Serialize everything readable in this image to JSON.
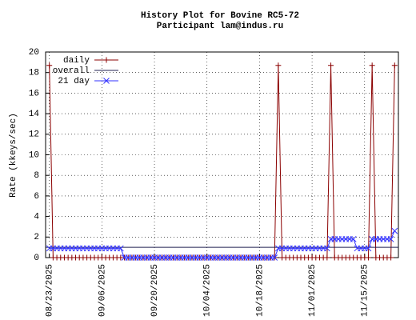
{
  "chart_data": {
    "type": "line",
    "title": "History Plot for Bovine RC5-72",
    "subtitle": "Participant lam@indus.ru",
    "y_label": "Rate (kkeys/sec)",
    "x": [
      "08/23/2025",
      "08/24/2025",
      "08/25/2025",
      "08/26/2025",
      "08/27/2025",
      "08/28/2025",
      "08/29/2025",
      "08/30/2025",
      "08/31/2025",
      "09/01/2025",
      "09/02/2025",
      "09/03/2025",
      "09/04/2025",
      "09/05/2025",
      "09/06/2025",
      "09/07/2025",
      "09/08/2025",
      "09/09/2025",
      "09/10/2025",
      "09/11/2025",
      "09/12/2025",
      "09/13/2025",
      "09/14/2025",
      "09/15/2025",
      "09/16/2025",
      "09/17/2025",
      "09/18/2025",
      "09/19/2025",
      "09/20/2025",
      "09/21/2025",
      "09/22/2025",
      "09/23/2025",
      "09/24/2025",
      "09/25/2025",
      "09/26/2025",
      "09/27/2025",
      "09/28/2025",
      "09/29/2025",
      "09/30/2025",
      "10/01/2025",
      "10/02/2025",
      "10/03/2025",
      "10/04/2025",
      "10/05/2025",
      "10/06/2025",
      "10/07/2025",
      "10/08/2025",
      "10/09/2025",
      "10/10/2025",
      "10/11/2025",
      "10/12/2025",
      "10/13/2025",
      "10/14/2025",
      "10/15/2025",
      "10/16/2025",
      "10/17/2025",
      "10/18/2025",
      "10/19/2025",
      "10/20/2025",
      "10/21/2025",
      "10/22/2025",
      "10/23/2025",
      "10/24/2025",
      "10/25/2025",
      "10/26/2025",
      "10/27/2025",
      "10/28/2025",
      "10/29/2025",
      "10/30/2025",
      "10/31/2025",
      "11/01/2025",
      "11/02/2025",
      "11/03/2025",
      "11/04/2025",
      "11/05/2025",
      "11/06/2025",
      "11/07/2025",
      "11/08/2025",
      "11/09/2025",
      "11/10/2025",
      "11/11/2025",
      "11/12/2025",
      "11/13/2025",
      "11/14/2025",
      "11/15/2025",
      "11/16/2025",
      "11/17/2025",
      "11/18/2025",
      "11/19/2025",
      "11/20/2025",
      "11/21/2025",
      "11/22/2025",
      "11/23/2025"
    ],
    "series": [
      {
        "name": "daily",
        "color": "#8b0000",
        "marker": "plus",
        "values": [
          18.7,
          0,
          0,
          0,
          0,
          0,
          0,
          0,
          0,
          0,
          0,
          0,
          0,
          0,
          0,
          0,
          0,
          0,
          0,
          0,
          0,
          0,
          0,
          0,
          0,
          0,
          0,
          0,
          0,
          0,
          0,
          0,
          0,
          0,
          0,
          0,
          0,
          0,
          0,
          0,
          0,
          0,
          0,
          0,
          0,
          0,
          0,
          0,
          0,
          0,
          0,
          0,
          0,
          0,
          0,
          0,
          0,
          0,
          0,
          0,
          0,
          18.7,
          0,
          0,
          0,
          0,
          0,
          0,
          0,
          0,
          0,
          0,
          0,
          0,
          0,
          18.7,
          0,
          0,
          0,
          0,
          0,
          0,
          0,
          0,
          0,
          0,
          18.7,
          0,
          0,
          0,
          0,
          0,
          18.7
        ]
      },
      {
        "name": "overall",
        "color": "#202050",
        "x": [
          "08/22/2025",
          "11/24/2025"
        ],
        "values": [
          1.0,
          1.0
        ]
      },
      {
        "name": "21 day",
        "color": "#3333ff",
        "marker": "cross",
        "values": [
          0.9,
          0.9,
          0.9,
          0.9,
          0.9,
          0.9,
          0.9,
          0.9,
          0.9,
          0.9,
          0.9,
          0.9,
          0.9,
          0.9,
          0.9,
          0.9,
          0.9,
          0.9,
          0.9,
          0.9,
          0,
          0,
          0,
          0,
          0,
          0,
          0,
          0,
          0,
          0,
          0,
          0,
          0,
          0,
          0,
          0,
          0,
          0,
          0,
          0,
          0,
          0,
          0,
          0,
          0,
          0,
          0,
          0,
          0,
          0,
          0,
          0,
          0,
          0,
          0,
          0,
          0,
          0,
          0,
          0,
          0,
          0.9,
          0.9,
          0.9,
          0.9,
          0.9,
          0.9,
          0.9,
          0.9,
          0.9,
          0.9,
          0.9,
          0.9,
          0.9,
          0.9,
          1.8,
          1.8,
          1.8,
          1.8,
          1.8,
          1.8,
          1.8,
          0.9,
          0.9,
          0.9,
          0.9,
          1.8,
          1.8,
          1.8,
          1.8,
          1.8,
          1.8,
          2.6
        ]
      }
    ],
    "xlim": [
      "08/22/2025",
      "11/24/2025"
    ],
    "xticks": [
      "08/23/2025",
      "09/06/2025",
      "09/20/2025",
      "10/04/2025",
      "10/18/2025",
      "11/01/2025",
      "11/15/2025"
    ],
    "ylim": [
      0,
      20
    ],
    "yticks": [
      0,
      2,
      4,
      6,
      8,
      10,
      12,
      14,
      16,
      18,
      20
    ],
    "grid": true,
    "legend": "top-left"
  }
}
